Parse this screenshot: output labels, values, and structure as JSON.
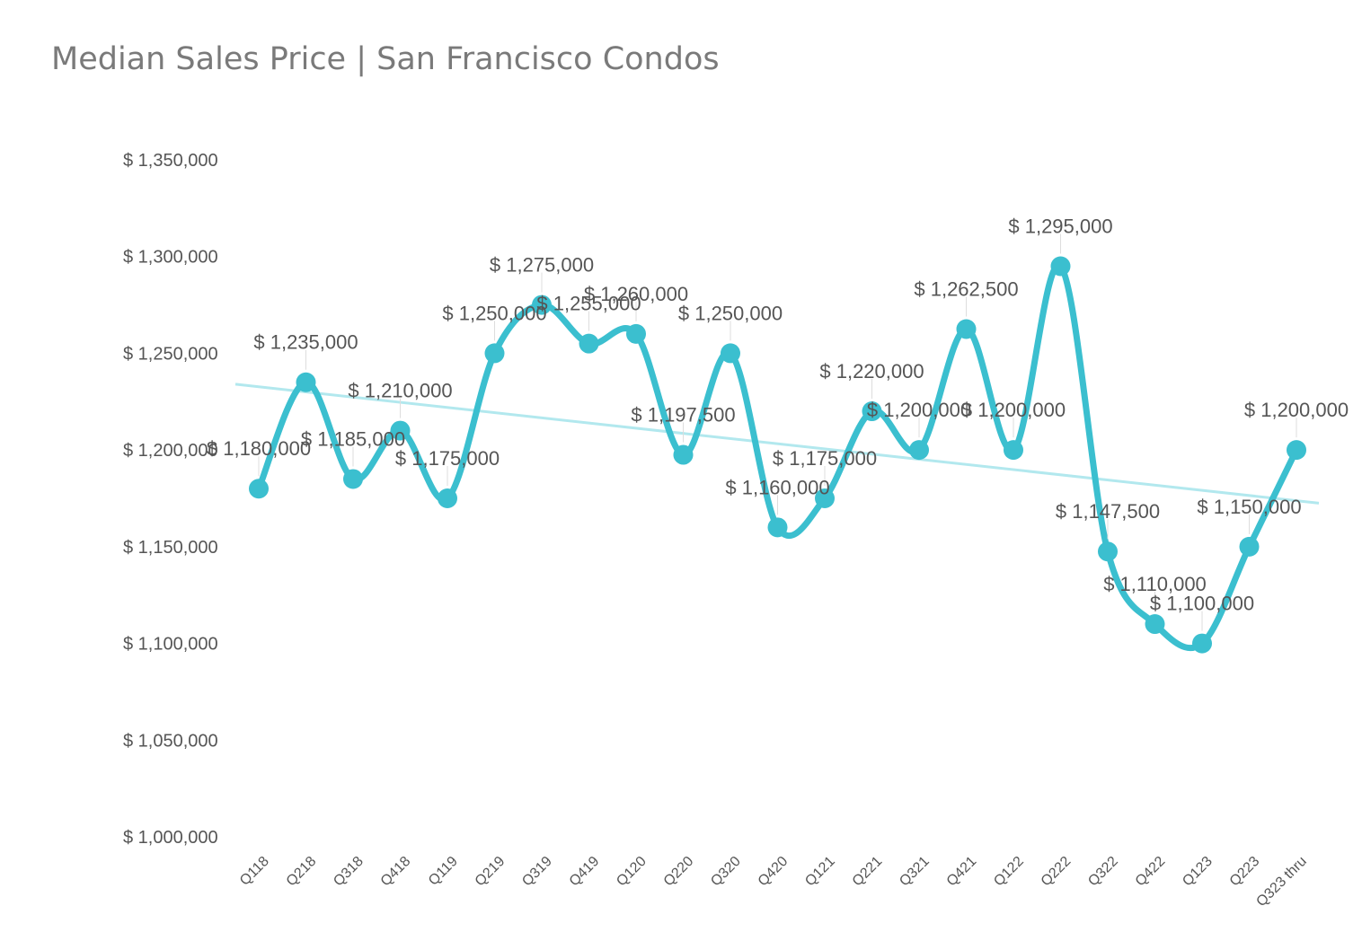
{
  "chart_data": {
    "type": "line",
    "title": "Median Sales Price | San Francisco Condos",
    "xlabel": "",
    "ylabel": "",
    "ylim": [
      1000000,
      1350000
    ],
    "y_ticks": [
      1000000,
      1050000,
      1100000,
      1150000,
      1200000,
      1250000,
      1300000,
      1350000
    ],
    "y_tick_labels": [
      "$ 1,000,000",
      "$ 1,050,000",
      "$ 1,100,000",
      "$ 1,150,000",
      "$ 1,200,000",
      "$ 1,250,000",
      "$ 1,300,000",
      "$ 1,350,000"
    ],
    "categories": [
      "Q118",
      "Q218",
      "Q318",
      "Q418",
      "Q119",
      "Q219",
      "Q319",
      "Q419",
      "Q120",
      "Q220",
      "Q320",
      "Q420",
      "Q121",
      "Q221",
      "Q321",
      "Q421",
      "Q122",
      "Q222",
      "Q322",
      "Q422",
      "Q123",
      "Q223",
      "Q323 thru"
    ],
    "series": [
      {
        "name": "Median Sales Price",
        "color": "#3bbfcf",
        "values": [
          1180000,
          1235000,
          1185000,
          1210000,
          1175000,
          1250000,
          1275000,
          1255000,
          1260000,
          1197500,
          1250000,
          1160000,
          1175000,
          1220000,
          1200000,
          1262500,
          1200000,
          1295000,
          1147500,
          1110000,
          1100000,
          1150000,
          1200000
        ],
        "data_labels": [
          "$ 1,180,000",
          "$ 1,235,000",
          "$ 1,185,000",
          "$ 1,210,000",
          "$ 1,175,000",
          "$ 1,250,000",
          "$ 1,275,000",
          "$ 1,255,000",
          "$ 1,260,000",
          "$ 1,197,500",
          "$ 1,250,000",
          "$ 1,160,000",
          "$ 1,175,000",
          "$ 1,220,000",
          "$ 1,200,000",
          "$ 1,262,500",
          "$ 1,200,000",
          "$ 1,295,000",
          "$ 1,147,500",
          "$ 1,110,000",
          "$ 1,100,000",
          "$ 1,150,000",
          "$ 1,200,000"
        ]
      }
    ],
    "trendline": {
      "type": "linear",
      "color": "#b2e8ee",
      "start_value": 1234000,
      "end_value": 1172500
    },
    "grid": false,
    "legend": "none"
  }
}
